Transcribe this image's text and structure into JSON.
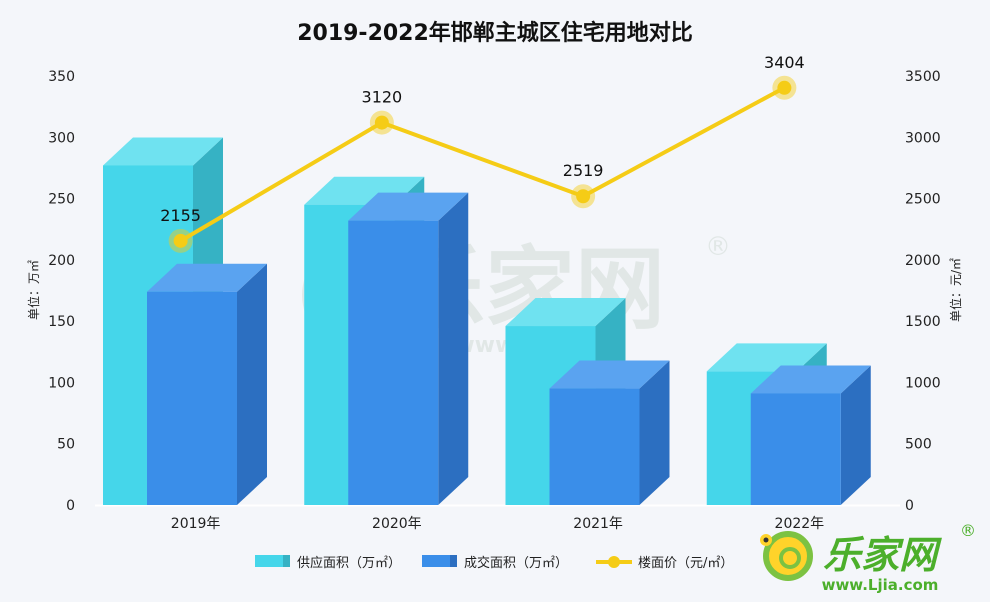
{
  "chart_data": {
    "type": "bar",
    "title": "2019-2022年邯郸主城区住宅用地对比",
    "categories": [
      "2019年",
      "2020年",
      "2021年",
      "2022年"
    ],
    "series": [
      {
        "name": "供应面积（万㎡）",
        "type": "bar",
        "axis": "left",
        "values": [
          277,
          245,
          146,
          109
        ]
      },
      {
        "name": "成交面积（万㎡）",
        "type": "bar",
        "axis": "left",
        "values": [
          174,
          232,
          95,
          91
        ]
      },
      {
        "name": "楼面价（元/㎡）",
        "type": "line",
        "axis": "right",
        "values": [
          2155,
          3120,
          2519,
          3404
        ]
      }
    ],
    "ylabel": "单位：万㎡",
    "y2label": "单位：元/㎡",
    "ylim": [
      0,
      350
    ],
    "y2lim": [
      0,
      3500
    ],
    "yticks": [
      0,
      50,
      100,
      150,
      200,
      250,
      300,
      350
    ],
    "y2ticks": [
      0,
      500,
      1000,
      1500,
      2000,
      2500,
      3000,
      3500
    ],
    "legend_position": "bottom",
    "colors": {
      "supply": "#45d6ea",
      "deal": "#3a8ee9",
      "price": "#f5cc16"
    }
  },
  "watermark": {
    "text": "乐家网",
    "url": "www.Ljia.com",
    "registered": "®"
  }
}
